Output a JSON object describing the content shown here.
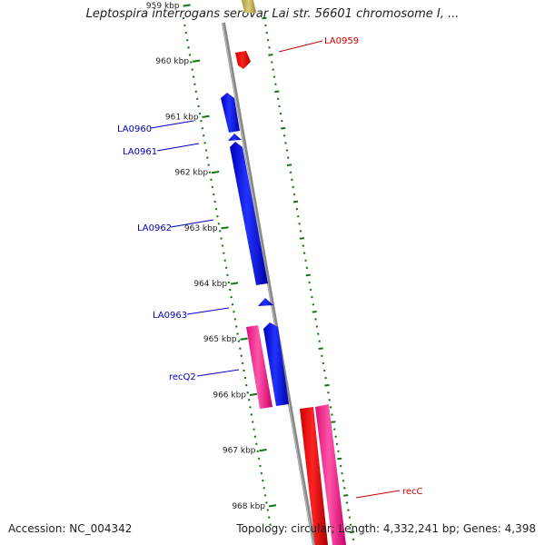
{
  "title": "Leptospira interrogans serovar Lai str. 56601 chromosome I, ...",
  "footer": {
    "accession": "Accession: NC_004342",
    "summary": "Topology: circular; Length: 4,332,241 bp; Genes: 4,398"
  },
  "colors": {
    "backbone": "#8a8a8a",
    "gc_ticks": "#117711",
    "forward_gene": "#ee0000",
    "forward_label": "#cc0000",
    "reverse_gene": "#0000dd",
    "reverse_label": "#0000bb",
    "rna_gene": "#ee1188",
    "top_gene": "#bbaa55"
  },
  "ticks": [
    {
      "label": "959 kbp"
    },
    {
      "label": "960 kbp"
    },
    {
      "label": "961 kbp"
    },
    {
      "label": "962 kbp"
    },
    {
      "label": "963 kbp"
    },
    {
      "label": "964 kbp"
    },
    {
      "label": "965 kbp"
    },
    {
      "label": "966 kbp"
    },
    {
      "label": "967 kbp"
    },
    {
      "label": "968 kbp"
    }
  ],
  "genes": [
    {
      "name": "LA0959",
      "strand": "forward"
    },
    {
      "name": "LA0960",
      "strand": "reverse"
    },
    {
      "name": "LA0961",
      "strand": "reverse"
    },
    {
      "name": "LA0962",
      "strand": "reverse"
    },
    {
      "name": "LA0963",
      "strand": "reverse"
    },
    {
      "name": "recQ2",
      "strand": "reverse"
    },
    {
      "name": "recC",
      "strand": "forward"
    }
  ]
}
